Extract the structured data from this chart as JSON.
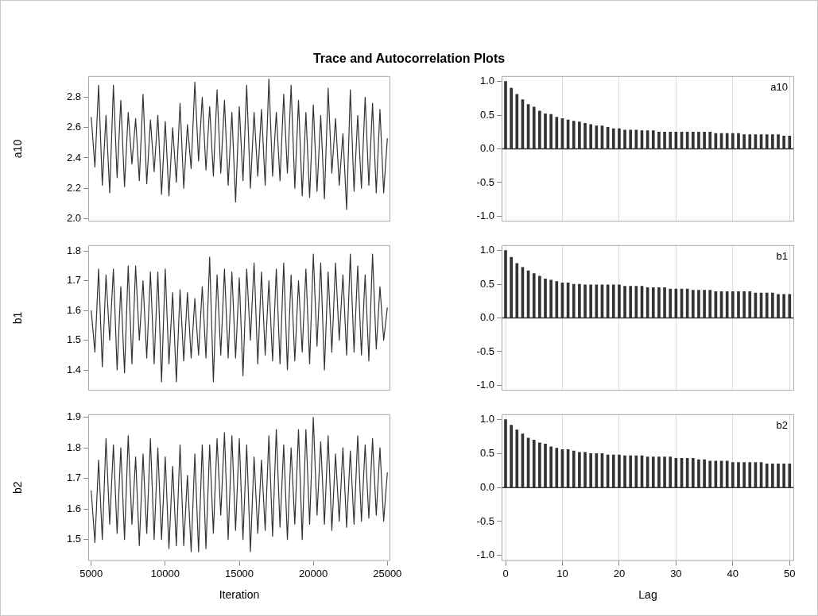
{
  "chart_data": [
    {
      "type": "line",
      "title": "Trace and Autocorrelation Plots",
      "ylabel": "a10",
      "tick_labels": "y",
      "grid": false,
      "legend": false,
      "marker": "none",
      "xlim": [
        4800,
        25200
      ],
      "ylim": [
        1.98,
        2.94
      ],
      "yticks": [
        {
          "value": 2,
          "label": "2.0"
        },
        {
          "value": 2.2,
          "label": "2.2"
        },
        {
          "value": 2.4,
          "label": "2.4"
        },
        {
          "value": 2.6,
          "label": "2.6"
        },
        {
          "value": 2.8,
          "label": "2.8"
        }
      ],
      "x": [
        5000,
        5250,
        5500,
        5750,
        6000,
        6250,
        6500,
        6750,
        7000,
        7250,
        7500,
        7750,
        8000,
        8250,
        8500,
        8750,
        9000,
        9250,
        9500,
        9750,
        10000,
        10250,
        10500,
        10750,
        11000,
        11250,
        11500,
        11750,
        12000,
        12250,
        12500,
        12750,
        13000,
        13250,
        13500,
        13750,
        14000,
        14250,
        14500,
        14750,
        15000,
        15250,
        15500,
        15750,
        16000,
        16250,
        16500,
        16750,
        17000,
        17250,
        17500,
        17750,
        18000,
        18250,
        18500,
        18750,
        19000,
        19250,
        19500,
        19750,
        20000,
        20250,
        20500,
        20750,
        21000,
        21250,
        21500,
        21750,
        22000,
        22250,
        22500,
        22750,
        23000,
        23250,
        23500,
        23750,
        24000,
        24250,
        24500,
        24750,
        25000
      ],
      "series": [
        {
          "color": "#333333",
          "values": [
            2.67,
            2.34,
            2.88,
            2.22,
            2.68,
            2.17,
            2.88,
            2.27,
            2.78,
            2.21,
            2.7,
            2.36,
            2.66,
            2.25,
            2.82,
            2.23,
            2.65,
            2.31,
            2.68,
            2.16,
            2.64,
            2.15,
            2.6,
            2.24,
            2.76,
            2.2,
            2.62,
            2.33,
            2.9,
            2.38,
            2.8,
            2.32,
            2.74,
            2.28,
            2.85,
            2.3,
            2.78,
            2.22,
            2.7,
            2.11,
            2.74,
            2.25,
            2.88,
            2.2,
            2.7,
            2.28,
            2.72,
            2.22,
            2.92,
            2.28,
            2.7,
            2.25,
            2.82,
            2.3,
            2.88,
            2.2,
            2.78,
            2.15,
            2.7,
            2.14,
            2.75,
            2.18,
            2.68,
            2.13,
            2.86,
            2.3,
            2.66,
            2.22,
            2.56,
            2.06,
            2.85,
            2.18,
            2.68,
            2.2,
            2.8,
            2.22,
            2.76,
            2.17,
            2.72,
            2.17,
            2.53
          ]
        }
      ]
    },
    {
      "type": "bar",
      "annotations": [
        "a10"
      ],
      "tick_labels": "y",
      "grid": "x",
      "legend": false,
      "xlim": [
        -0.7,
        50.8
      ],
      "ylim": [
        -1.08,
        1.08
      ],
      "yticks": [
        {
          "value": -1,
          "label": "-1.0"
        },
        {
          "value": -0.5,
          "label": "-0.5"
        },
        {
          "value": 0,
          "label": "0.0"
        },
        {
          "value": 0.5,
          "label": "0.5"
        },
        {
          "value": 1,
          "label": "1.0"
        }
      ],
      "xticks": [
        0,
        10,
        20,
        30,
        40,
        50
      ],
      "ref_lines": [
        {
          "axis": "y",
          "value": 0,
          "color": "#333333"
        }
      ],
      "x": [
        0,
        1,
        2,
        3,
        4,
        5,
        6,
        7,
        8,
        9,
        10,
        11,
        12,
        13,
        14,
        15,
        16,
        17,
        18,
        19,
        20,
        21,
        22,
        23,
        24,
        25,
        26,
        27,
        28,
        29,
        30,
        31,
        32,
        33,
        34,
        35,
        36,
        37,
        38,
        39,
        40,
        41,
        42,
        43,
        44,
        45,
        46,
        47,
        48,
        49,
        50
      ],
      "series": [
        {
          "color": "#333333",
          "values": [
            1.0,
            0.9,
            0.81,
            0.73,
            0.66,
            0.62,
            0.56,
            0.52,
            0.51,
            0.47,
            0.45,
            0.43,
            0.41,
            0.4,
            0.38,
            0.36,
            0.34,
            0.34,
            0.32,
            0.3,
            0.3,
            0.28,
            0.28,
            0.28,
            0.27,
            0.27,
            0.27,
            0.25,
            0.25,
            0.25,
            0.25,
            0.25,
            0.25,
            0.25,
            0.25,
            0.25,
            0.25,
            0.23,
            0.23,
            0.23,
            0.23,
            0.23,
            0.21,
            0.21,
            0.21,
            0.21,
            0.21,
            0.21,
            0.21,
            0.19,
            0.19
          ]
        }
      ]
    },
    {
      "type": "line",
      "ylabel": "b1",
      "tick_labels": "y",
      "grid": false,
      "legend": false,
      "marker": "none",
      "xlim": [
        4800,
        25200
      ],
      "ylim": [
        1.33,
        1.82
      ],
      "yticks": [
        {
          "value": 1.4,
          "label": "1.4"
        },
        {
          "value": 1.5,
          "label": "1.5"
        },
        {
          "value": 1.6,
          "label": "1.6"
        },
        {
          "value": 1.7,
          "label": "1.7"
        },
        {
          "value": 1.8,
          "label": "1.8"
        }
      ],
      "x": [
        5000,
        5250,
        5500,
        5750,
        6000,
        6250,
        6500,
        6750,
        7000,
        7250,
        7500,
        7750,
        8000,
        8250,
        8500,
        8750,
        9000,
        9250,
        9500,
        9750,
        10000,
        10250,
        10500,
        10750,
        11000,
        11250,
        11500,
        11750,
        12000,
        12250,
        12500,
        12750,
        13000,
        13250,
        13500,
        13750,
        14000,
        14250,
        14500,
        14750,
        15000,
        15250,
        15500,
        15750,
        16000,
        16250,
        16500,
        16750,
        17000,
        17250,
        17500,
        17750,
        18000,
        18250,
        18500,
        18750,
        19000,
        19250,
        19500,
        19750,
        20000,
        20250,
        20500,
        20750,
        21000,
        21250,
        21500,
        21750,
        22000,
        22250,
        22500,
        22750,
        23000,
        23250,
        23500,
        23750,
        24000,
        24250,
        24500,
        24750,
        25000
      ],
      "series": [
        {
          "color": "#333333",
          "values": [
            1.6,
            1.46,
            1.74,
            1.41,
            1.72,
            1.5,
            1.74,
            1.4,
            1.68,
            1.39,
            1.75,
            1.42,
            1.75,
            1.5,
            1.7,
            1.44,
            1.73,
            1.42,
            1.73,
            1.36,
            1.74,
            1.42,
            1.66,
            1.36,
            1.67,
            1.43,
            1.66,
            1.44,
            1.64,
            1.45,
            1.68,
            1.44,
            1.78,
            1.36,
            1.72,
            1.45,
            1.74,
            1.44,
            1.73,
            1.44,
            1.71,
            1.38,
            1.74,
            1.5,
            1.76,
            1.42,
            1.73,
            1.45,
            1.7,
            1.43,
            1.74,
            1.42,
            1.76,
            1.4,
            1.72,
            1.43,
            1.7,
            1.46,
            1.74,
            1.42,
            1.79,
            1.48,
            1.76,
            1.4,
            1.73,
            1.46,
            1.76,
            1.5,
            1.72,
            1.45,
            1.79,
            1.46,
            1.75,
            1.45,
            1.72,
            1.43,
            1.79,
            1.47,
            1.68,
            1.5,
            1.61
          ]
        }
      ]
    },
    {
      "type": "bar",
      "annotations": [
        "b1"
      ],
      "tick_labels": "y",
      "grid": "x",
      "legend": false,
      "xlim": [
        -0.7,
        50.8
      ],
      "ylim": [
        -1.08,
        1.08
      ],
      "yticks": [
        {
          "value": -1,
          "label": "-1.0"
        },
        {
          "value": -0.5,
          "label": "-0.5"
        },
        {
          "value": 0,
          "label": "0.0"
        },
        {
          "value": 0.5,
          "label": "0.5"
        },
        {
          "value": 1,
          "label": "1.0"
        }
      ],
      "xticks": [
        0,
        10,
        20,
        30,
        40,
        50
      ],
      "ref_lines": [
        {
          "axis": "y",
          "value": 0,
          "color": "#333333"
        }
      ],
      "x": [
        0,
        1,
        2,
        3,
        4,
        5,
        6,
        7,
        8,
        9,
        10,
        11,
        12,
        13,
        14,
        15,
        16,
        17,
        18,
        19,
        20,
        21,
        22,
        23,
        24,
        25,
        26,
        27,
        28,
        29,
        30,
        31,
        32,
        33,
        34,
        35,
        36,
        37,
        38,
        39,
        40,
        41,
        42,
        43,
        44,
        45,
        46,
        47,
        48,
        49,
        50
      ],
      "series": [
        {
          "color": "#333333",
          "values": [
            1.0,
            0.9,
            0.81,
            0.75,
            0.7,
            0.66,
            0.62,
            0.58,
            0.56,
            0.54,
            0.52,
            0.52,
            0.5,
            0.5,
            0.49,
            0.49,
            0.49,
            0.49,
            0.49,
            0.49,
            0.49,
            0.47,
            0.47,
            0.47,
            0.47,
            0.45,
            0.45,
            0.45,
            0.45,
            0.43,
            0.43,
            0.43,
            0.43,
            0.41,
            0.41,
            0.41,
            0.41,
            0.39,
            0.39,
            0.39,
            0.39,
            0.39,
            0.39,
            0.39,
            0.37,
            0.37,
            0.37,
            0.37,
            0.35,
            0.35,
            0.35
          ]
        }
      ]
    },
    {
      "type": "line",
      "ylabel": "b2",
      "xlabel": "Iteration",
      "grid": false,
      "legend": false,
      "marker": "none",
      "xlim": [
        4800,
        25200
      ],
      "ylim": [
        1.43,
        1.91
      ],
      "xticks": [
        5000,
        10000,
        15000,
        20000,
        25000
      ],
      "yticks": [
        {
          "value": 1.5,
          "label": "1.5"
        },
        {
          "value": 1.6,
          "label": "1.6"
        },
        {
          "value": 1.7,
          "label": "1.7"
        },
        {
          "value": 1.8,
          "label": "1.8"
        },
        {
          "value": 1.9,
          "label": "1.9"
        }
      ],
      "x": [
        5000,
        5250,
        5500,
        5750,
        6000,
        6250,
        6500,
        6750,
        7000,
        7250,
        7500,
        7750,
        8000,
        8250,
        8500,
        8750,
        9000,
        9250,
        9500,
        9750,
        10000,
        10250,
        10500,
        10750,
        11000,
        11250,
        11500,
        11750,
        12000,
        12250,
        12500,
        12750,
        13000,
        13250,
        13500,
        13750,
        14000,
        14250,
        14500,
        14750,
        15000,
        15250,
        15500,
        15750,
        16000,
        16250,
        16500,
        16750,
        17000,
        17250,
        17500,
        17750,
        18000,
        18250,
        18500,
        18750,
        19000,
        19250,
        19500,
        19750,
        20000,
        20250,
        20500,
        20750,
        21000,
        21250,
        21500,
        21750,
        22000,
        22250,
        22500,
        22750,
        23000,
        23250,
        23500,
        23750,
        24000,
        24250,
        24500,
        24750,
        25000
      ],
      "series": [
        {
          "color": "#333333",
          "values": [
            1.66,
            1.49,
            1.76,
            1.5,
            1.83,
            1.55,
            1.81,
            1.52,
            1.8,
            1.5,
            1.84,
            1.55,
            1.77,
            1.48,
            1.78,
            1.52,
            1.83,
            1.5,
            1.8,
            1.5,
            1.77,
            1.47,
            1.74,
            1.48,
            1.81,
            1.48,
            1.71,
            1.46,
            1.78,
            1.46,
            1.81,
            1.47,
            1.81,
            1.52,
            1.83,
            1.58,
            1.85,
            1.5,
            1.84,
            1.53,
            1.83,
            1.5,
            1.81,
            1.46,
            1.77,
            1.52,
            1.76,
            1.53,
            1.84,
            1.51,
            1.86,
            1.54,
            1.81,
            1.5,
            1.8,
            1.55,
            1.86,
            1.5,
            1.86,
            1.55,
            1.9,
            1.58,
            1.82,
            1.55,
            1.84,
            1.53,
            1.78,
            1.56,
            1.8,
            1.54,
            1.79,
            1.55,
            1.84,
            1.56,
            1.81,
            1.57,
            1.83,
            1.58,
            1.8,
            1.56,
            1.72
          ]
        }
      ]
    },
    {
      "type": "bar",
      "annotations": [
        "b2"
      ],
      "xlabel": "Lag",
      "grid": "x",
      "legend": false,
      "xlim": [
        -0.7,
        50.8
      ],
      "ylim": [
        -1.08,
        1.08
      ],
      "yticks": [
        {
          "value": -1,
          "label": "-1.0"
        },
        {
          "value": -0.5,
          "label": "-0.5"
        },
        {
          "value": 0,
          "label": "0.0"
        },
        {
          "value": 0.5,
          "label": "0.5"
        },
        {
          "value": 1,
          "label": "1.0"
        }
      ],
      "xticks": [
        0,
        10,
        20,
        30,
        40,
        50
      ],
      "ref_lines": [
        {
          "axis": "y",
          "value": 0,
          "color": "#333333"
        }
      ],
      "x": [
        0,
        1,
        2,
        3,
        4,
        5,
        6,
        7,
        8,
        9,
        10,
        11,
        12,
        13,
        14,
        15,
        16,
        17,
        18,
        19,
        20,
        21,
        22,
        23,
        24,
        25,
        26,
        27,
        28,
        29,
        30,
        31,
        32,
        33,
        34,
        35,
        36,
        37,
        38,
        39,
        40,
        41,
        42,
        43,
        44,
        45,
        46,
        47,
        48,
        49,
        50
      ],
      "series": [
        {
          "color": "#333333",
          "values": [
            1.0,
            0.92,
            0.85,
            0.79,
            0.73,
            0.7,
            0.66,
            0.64,
            0.6,
            0.58,
            0.56,
            0.56,
            0.54,
            0.52,
            0.52,
            0.5,
            0.5,
            0.5,
            0.48,
            0.48,
            0.48,
            0.47,
            0.47,
            0.47,
            0.47,
            0.45,
            0.45,
            0.45,
            0.45,
            0.45,
            0.43,
            0.43,
            0.43,
            0.43,
            0.41,
            0.41,
            0.39,
            0.39,
            0.39,
            0.39,
            0.37,
            0.37,
            0.37,
            0.37,
            0.37,
            0.37,
            0.35,
            0.35,
            0.35,
            0.35,
            0.35
          ]
        }
      ]
    }
  ]
}
